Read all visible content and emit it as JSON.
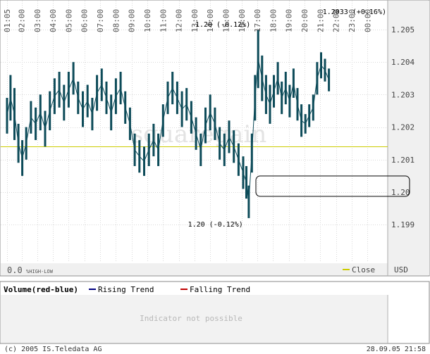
{
  "chart_data": {
    "type": "bar",
    "subtype": "ohlc",
    "x_ticks": [
      "01:05",
      "02:00",
      "03:00",
      "04:00",
      "05:00",
      "06:00",
      "07:00",
      "08:00",
      "09:00",
      "10:00",
      "11:00",
      "12:00",
      "13:00",
      "14:00",
      "15:00",
      "16:00",
      "17:00",
      "18:00",
      "19:00",
      "20:00",
      "21:00",
      "22:00",
      "23:00",
      "00:00"
    ],
    "y_ticks": [
      "1.205",
      "1.204",
      "1.203",
      "1.202",
      "1.201",
      "1.20",
      "1.199"
    ],
    "y_tick_values": [
      1.205,
      1.204,
      1.203,
      1.202,
      1.201,
      1.2,
      1.199
    ],
    "ylim": [
      1.1979,
      1.2058
    ],
    "x_range_hours": [
      1.08,
      24.75
    ],
    "close_line": 1.2014,
    "last_quote": {
      "text": "1.2033 (+0.16%)",
      "value": 1.2033
    },
    "high_annotation": {
      "text": "1.20 (-0.12%)",
      "hour": 17.05,
      "value": 1.205
    },
    "low_annotation": {
      "text": "1.20 (-0.12%)",
      "hour": 16.45,
      "value": 1.1992
    },
    "ohlc_series": [
      [
        1.08,
        1.2018,
        1.2029
      ],
      [
        1.3,
        1.2022,
        1.2036
      ],
      [
        1.55,
        1.2016,
        1.2032
      ],
      [
        1.8,
        1.2009,
        1.2021
      ],
      [
        2.05,
        1.2005,
        1.2016
      ],
      [
        2.3,
        1.201,
        1.202
      ],
      [
        2.6,
        1.2018,
        1.2028
      ],
      [
        2.9,
        1.2016,
        1.2026
      ],
      [
        3.2,
        1.2019,
        1.203
      ],
      [
        3.5,
        1.2014,
        1.2025
      ],
      [
        3.8,
        1.2019,
        1.2031
      ],
      [
        4.1,
        1.2024,
        1.2035
      ],
      [
        4.4,
        1.2026,
        1.2037
      ],
      [
        4.7,
        1.2022,
        1.2033
      ],
      [
        5.0,
        1.2026,
        1.2037
      ],
      [
        5.3,
        1.203,
        1.204
      ],
      [
        5.6,
        1.2024,
        1.2034
      ],
      [
        5.9,
        1.202,
        1.2031
      ],
      [
        6.2,
        1.2023,
        1.2033
      ],
      [
        6.5,
        1.2019,
        1.2029
      ],
      [
        6.8,
        1.2025,
        1.2036
      ],
      [
        7.1,
        1.2028,
        1.2038
      ],
      [
        7.4,
        1.2024,
        1.2034
      ],
      [
        7.7,
        1.2019,
        1.203
      ],
      [
        8.0,
        1.2024,
        1.2035
      ],
      [
        8.3,
        1.2027,
        1.2037
      ],
      [
        8.6,
        1.2021,
        1.2031
      ],
      [
        8.9,
        1.2016,
        1.2026
      ],
      [
        9.2,
        1.2008,
        1.2018
      ],
      [
        9.5,
        1.2006,
        1.2016
      ],
      [
        9.8,
        1.2005,
        1.2014
      ],
      [
        10.1,
        1.2008,
        1.2018
      ],
      [
        10.4,
        1.2011,
        1.2021
      ],
      [
        10.7,
        1.2008,
        1.2018
      ],
      [
        11.0,
        1.2017,
        1.2027
      ],
      [
        11.3,
        1.2024,
        1.2034
      ],
      [
        11.6,
        1.2027,
        1.2037
      ],
      [
        11.9,
        1.2024,
        1.2034
      ],
      [
        12.2,
        1.202,
        1.2031
      ],
      [
        12.5,
        1.2022,
        1.2032
      ],
      [
        12.8,
        1.2018,
        1.2028
      ],
      [
        13.1,
        1.2013,
        1.2023
      ],
      [
        13.4,
        1.2008,
        1.2018
      ],
      [
        13.7,
        1.2015,
        1.2026
      ],
      [
        14.0,
        1.2019,
        1.203
      ],
      [
        14.3,
        1.2016,
        1.2026
      ],
      [
        14.6,
        1.201,
        1.202
      ],
      [
        14.9,
        1.2008,
        1.2018
      ],
      [
        15.2,
        1.2012,
        1.2022
      ],
      [
        15.5,
        1.2009,
        1.2019
      ],
      [
        15.8,
        1.2005,
        1.2015
      ],
      [
        16.1,
        1.2001,
        1.2011
      ],
      [
        16.3,
        1.1998,
        1.2008
      ],
      [
        16.45,
        1.1992,
        1.2002
      ],
      [
        16.65,
        1.2006,
        1.2018
      ],
      [
        16.85,
        1.2022,
        1.2036
      ],
      [
        17.05,
        1.2032,
        1.205
      ],
      [
        17.3,
        1.2028,
        1.2042
      ],
      [
        17.55,
        1.2024,
        1.2036
      ],
      [
        17.8,
        1.2021,
        1.2033
      ],
      [
        18.05,
        1.2026,
        1.2036
      ],
      [
        18.3,
        1.203,
        1.204
      ],
      [
        18.55,
        1.2024,
        1.2034
      ],
      [
        18.8,
        1.2027,
        1.2037
      ],
      [
        19.05,
        1.2023,
        1.2033
      ],
      [
        19.3,
        1.2029,
        1.2038
      ],
      [
        19.55,
        1.2022,
        1.2032
      ],
      [
        19.8,
        1.2017,
        1.2027
      ],
      [
        20.05,
        1.2018,
        1.2024
      ],
      [
        20.3,
        1.202,
        1.2027
      ],
      [
        20.55,
        1.2022,
        1.203
      ],
      [
        20.8,
        1.203,
        1.204
      ],
      [
        21.05,
        1.2035,
        1.2043
      ],
      [
        21.3,
        1.2034,
        1.2041
      ],
      [
        21.55,
        1.2031,
        1.2038
      ]
    ],
    "footer_value": "0.0",
    "footer_mode": "%HIGH-LOW",
    "legend_close": "Close",
    "currency": "USD",
    "colors": {
      "bars": "#0d4b59",
      "close_line": "#cccc00",
      "rising": "#000080",
      "falling": "#c00000",
      "annotation": "#000000"
    },
    "watermark": "squaregain"
  },
  "indicator": {
    "title": "Volume(red-blue)",
    "legend": [
      {
        "label": "Rising Trend",
        "color": "#000080"
      },
      {
        "label": "Falling Trend",
        "color": "#c00000"
      }
    ],
    "message": "Indicator not possible"
  },
  "footer": {
    "copyright": "(c) 2005 IS.Teledata AG",
    "timestamp": "28.09.05 21:58"
  }
}
